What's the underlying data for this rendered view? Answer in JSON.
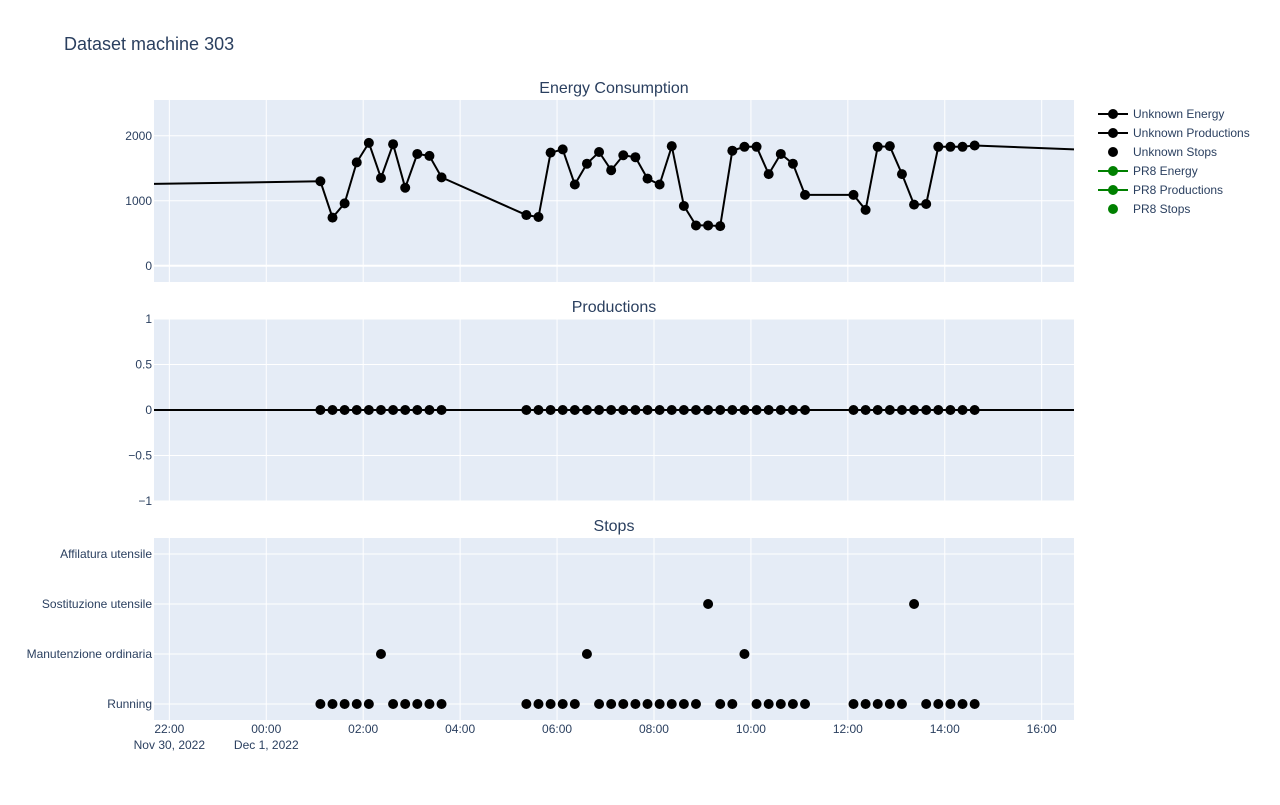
{
  "figure_title": "Dataset machine 303",
  "colors": {
    "plot_bg": "#e5ecf6",
    "grid": "#ffffff",
    "text": "#2a3f5f",
    "unknown": "#000000",
    "pr8": "#008000"
  },
  "legend": {
    "placement": "right",
    "items": [
      {
        "label": "Unknown Energy",
        "mode": "lines+markers",
        "color": "#000000"
      },
      {
        "label": "Unknown Productions",
        "mode": "lines+markers",
        "color": "#000000"
      },
      {
        "label": "Unknown Stops",
        "mode": "markers",
        "color": "#000000"
      },
      {
        "label": "PR8 Energy",
        "mode": "lines+markers",
        "color": "#008000"
      },
      {
        "label": "PR8 Productions",
        "mode": "lines+markers",
        "color": "#008000"
      },
      {
        "label": "PR8 Stops",
        "mode": "markers",
        "color": "#008000"
      }
    ]
  },
  "x_axis": {
    "type": "date",
    "range": [
      "2022-11-30T21:41",
      "2022-12-01T16:40"
    ],
    "ticks": [
      {
        "t": "2022-11-30T22:00",
        "label": "22:00",
        "sub": "Nov 30, 2022"
      },
      {
        "t": "2022-12-01T00:00",
        "label": "00:00",
        "sub": "Dec 1, 2022"
      },
      {
        "t": "2022-12-01T02:00",
        "label": "02:00"
      },
      {
        "t": "2022-12-01T04:00",
        "label": "04:00"
      },
      {
        "t": "2022-12-01T06:00",
        "label": "06:00"
      },
      {
        "t": "2022-12-01T08:00",
        "label": "08:00"
      },
      {
        "t": "2022-12-01T10:00",
        "label": "10:00"
      },
      {
        "t": "2022-12-01T12:00",
        "label": "12:00"
      },
      {
        "t": "2022-12-01T14:00",
        "label": "14:00"
      },
      {
        "t": "2022-12-01T16:00",
        "label": "16:00"
      }
    ]
  },
  "chart_data": [
    {
      "type": "line",
      "title": "Energy Consumption",
      "ylim": [
        -250,
        2550
      ],
      "yticks": [
        0,
        1000,
        2000
      ],
      "grid": true,
      "series": [
        {
          "name": "Unknown Energy",
          "line_start": {
            "x": "2022-11-30T21:41",
            "y": 1260
          },
          "line_end": {
            "x": "2022-12-01T16:40",
            "y": 1790
          },
          "points": [
            {
              "x": "2022-12-01T01:07",
              "y": 1300
            },
            {
              "x": "2022-12-01T01:22",
              "y": 740
            },
            {
              "x": "2022-12-01T01:37",
              "y": 960
            },
            {
              "x": "2022-12-01T01:52",
              "y": 1590
            },
            {
              "x": "2022-12-01T02:07",
              "y": 1890
            },
            {
              "x": "2022-12-01T02:22",
              "y": 1350
            },
            {
              "x": "2022-12-01T02:37",
              "y": 1870
            },
            {
              "x": "2022-12-01T02:52",
              "y": 1200
            },
            {
              "x": "2022-12-01T03:07",
              "y": 1720
            },
            {
              "x": "2022-12-01T03:22",
              "y": 1690
            },
            {
              "x": "2022-12-01T03:37",
              "y": 1360
            },
            {
              "x": "2022-12-01T05:22",
              "y": 780
            },
            {
              "x": "2022-12-01T05:37",
              "y": 750
            },
            {
              "x": "2022-12-01T05:52",
              "y": 1740
            },
            {
              "x": "2022-12-01T06:07",
              "y": 1790
            },
            {
              "x": "2022-12-01T06:22",
              "y": 1250
            },
            {
              "x": "2022-12-01T06:37",
              "y": 1570
            },
            {
              "x": "2022-12-01T06:52",
              "y": 1750
            },
            {
              "x": "2022-12-01T07:07",
              "y": 1470
            },
            {
              "x": "2022-12-01T07:22",
              "y": 1700
            },
            {
              "x": "2022-12-01T07:37",
              "y": 1670
            },
            {
              "x": "2022-12-01T07:52",
              "y": 1340
            },
            {
              "x": "2022-12-01T08:07",
              "y": 1250
            },
            {
              "x": "2022-12-01T08:22",
              "y": 1840
            },
            {
              "x": "2022-12-01T08:37",
              "y": 920
            },
            {
              "x": "2022-12-01T08:52",
              "y": 620
            },
            {
              "x": "2022-12-01T09:07",
              "y": 620
            },
            {
              "x": "2022-12-01T09:22",
              "y": 610
            },
            {
              "x": "2022-12-01T09:37",
              "y": 1770
            },
            {
              "x": "2022-12-01T09:52",
              "y": 1830
            },
            {
              "x": "2022-12-01T10:07",
              "y": 1830
            },
            {
              "x": "2022-12-01T10:22",
              "y": 1410
            },
            {
              "x": "2022-12-01T10:37",
              "y": 1720
            },
            {
              "x": "2022-12-01T10:52",
              "y": 1570
            },
            {
              "x": "2022-12-01T11:07",
              "y": 1090
            },
            {
              "x": "2022-12-01T12:07",
              "y": 1090
            },
            {
              "x": "2022-12-01T12:22",
              "y": 860
            },
            {
              "x": "2022-12-01T12:37",
              "y": 1830
            },
            {
              "x": "2022-12-01T12:52",
              "y": 1840
            },
            {
              "x": "2022-12-01T13:07",
              "y": 1410
            },
            {
              "x": "2022-12-01T13:22",
              "y": 940
            },
            {
              "x": "2022-12-01T13:37",
              "y": 950
            },
            {
              "x": "2022-12-01T13:52",
              "y": 1830
            },
            {
              "x": "2022-12-01T14:07",
              "y": 1830
            },
            {
              "x": "2022-12-01T14:22",
              "y": 1830
            },
            {
              "x": "2022-12-01T14:37",
              "y": 1850
            }
          ]
        }
      ]
    },
    {
      "type": "line",
      "title": "Productions",
      "ylim": [
        -1,
        1
      ],
      "yticks": [
        1,
        0.5,
        0,
        -0.5,
        -1
      ],
      "ytick_labels": [
        "1",
        "0.5",
        "0",
        "−0.5",
        "−1"
      ],
      "grid": true,
      "series": [
        {
          "name": "Unknown Productions",
          "line_value": 0,
          "points": [
            {
              "x": "2022-12-01T01:07",
              "y": 0
            },
            {
              "x": "2022-12-01T01:22",
              "y": 0
            },
            {
              "x": "2022-12-01T01:37",
              "y": 0
            },
            {
              "x": "2022-12-01T01:52",
              "y": 0
            },
            {
              "x": "2022-12-01T02:07",
              "y": 0
            },
            {
              "x": "2022-12-01T02:22",
              "y": 0
            },
            {
              "x": "2022-12-01T02:37",
              "y": 0
            },
            {
              "x": "2022-12-01T02:52",
              "y": 0
            },
            {
              "x": "2022-12-01T03:07",
              "y": 0
            },
            {
              "x": "2022-12-01T03:22",
              "y": 0
            },
            {
              "x": "2022-12-01T03:37",
              "y": 0
            },
            {
              "x": "2022-12-01T05:22",
              "y": 0
            },
            {
              "x": "2022-12-01T05:37",
              "y": 0
            },
            {
              "x": "2022-12-01T05:52",
              "y": 0
            },
            {
              "x": "2022-12-01T06:07",
              "y": 0
            },
            {
              "x": "2022-12-01T06:22",
              "y": 0
            },
            {
              "x": "2022-12-01T06:37",
              "y": 0
            },
            {
              "x": "2022-12-01T06:52",
              "y": 0
            },
            {
              "x": "2022-12-01T07:07",
              "y": 0
            },
            {
              "x": "2022-12-01T07:22",
              "y": 0
            },
            {
              "x": "2022-12-01T07:37",
              "y": 0
            },
            {
              "x": "2022-12-01T07:52",
              "y": 0
            },
            {
              "x": "2022-12-01T08:07",
              "y": 0
            },
            {
              "x": "2022-12-01T08:22",
              "y": 0
            },
            {
              "x": "2022-12-01T08:37",
              "y": 0
            },
            {
              "x": "2022-12-01T08:52",
              "y": 0
            },
            {
              "x": "2022-12-01T09:07",
              "y": 0
            },
            {
              "x": "2022-12-01T09:22",
              "y": 0
            },
            {
              "x": "2022-12-01T09:37",
              "y": 0
            },
            {
              "x": "2022-12-01T09:52",
              "y": 0
            },
            {
              "x": "2022-12-01T10:07",
              "y": 0
            },
            {
              "x": "2022-12-01T10:22",
              "y": 0
            },
            {
              "x": "2022-12-01T10:37",
              "y": 0
            },
            {
              "x": "2022-12-01T10:52",
              "y": 0
            },
            {
              "x": "2022-12-01T11:07",
              "y": 0
            },
            {
              "x": "2022-12-01T12:07",
              "y": 0
            },
            {
              "x": "2022-12-01T12:22",
              "y": 0
            },
            {
              "x": "2022-12-01T12:37",
              "y": 0
            },
            {
              "x": "2022-12-01T12:52",
              "y": 0
            },
            {
              "x": "2022-12-01T13:07",
              "y": 0
            },
            {
              "x": "2022-12-01T13:22",
              "y": 0
            },
            {
              "x": "2022-12-01T13:37",
              "y": 0
            },
            {
              "x": "2022-12-01T13:52",
              "y": 0
            },
            {
              "x": "2022-12-01T14:07",
              "y": 0
            },
            {
              "x": "2022-12-01T14:22",
              "y": 0
            },
            {
              "x": "2022-12-01T14:37",
              "y": 0
            }
          ]
        }
      ]
    },
    {
      "type": "scatter",
      "title": "Stops",
      "categories": [
        "Running",
        "Manutenzione ordinaria",
        "Sostituzione utensile",
        "Affilatura utensile"
      ],
      "grid": true,
      "series": [
        {
          "name": "Unknown Stops",
          "points": [
            {
              "x": "2022-12-01T01:07",
              "y": "Running"
            },
            {
              "x": "2022-12-01T01:22",
              "y": "Running"
            },
            {
              "x": "2022-12-01T01:37",
              "y": "Running"
            },
            {
              "x": "2022-12-01T01:52",
              "y": "Running"
            },
            {
              "x": "2022-12-01T02:07",
              "y": "Running"
            },
            {
              "x": "2022-12-01T02:22",
              "y": "Manutenzione ordinaria"
            },
            {
              "x": "2022-12-01T02:37",
              "y": "Running"
            },
            {
              "x": "2022-12-01T02:52",
              "y": "Running"
            },
            {
              "x": "2022-12-01T03:07",
              "y": "Running"
            },
            {
              "x": "2022-12-01T03:22",
              "y": "Running"
            },
            {
              "x": "2022-12-01T03:37",
              "y": "Running"
            },
            {
              "x": "2022-12-01T05:22",
              "y": "Running"
            },
            {
              "x": "2022-12-01T05:37",
              "y": "Running"
            },
            {
              "x": "2022-12-01T05:52",
              "y": "Running"
            },
            {
              "x": "2022-12-01T06:07",
              "y": "Running"
            },
            {
              "x": "2022-12-01T06:22",
              "y": "Running"
            },
            {
              "x": "2022-12-01T06:37",
              "y": "Manutenzione ordinaria"
            },
            {
              "x": "2022-12-01T06:52",
              "y": "Running"
            },
            {
              "x": "2022-12-01T07:07",
              "y": "Running"
            },
            {
              "x": "2022-12-01T07:22",
              "y": "Running"
            },
            {
              "x": "2022-12-01T07:37",
              "y": "Running"
            },
            {
              "x": "2022-12-01T07:52",
              "y": "Running"
            },
            {
              "x": "2022-12-01T08:07",
              "y": "Running"
            },
            {
              "x": "2022-12-01T08:22",
              "y": "Running"
            },
            {
              "x": "2022-12-01T08:37",
              "y": "Running"
            },
            {
              "x": "2022-12-01T08:52",
              "y": "Running"
            },
            {
              "x": "2022-12-01T09:07",
              "y": "Sostituzione utensile"
            },
            {
              "x": "2022-12-01T09:22",
              "y": "Running"
            },
            {
              "x": "2022-12-01T09:37",
              "y": "Running"
            },
            {
              "x": "2022-12-01T09:52",
              "y": "Manutenzione ordinaria"
            },
            {
              "x": "2022-12-01T10:07",
              "y": "Running"
            },
            {
              "x": "2022-12-01T10:22",
              "y": "Running"
            },
            {
              "x": "2022-12-01T10:37",
              "y": "Running"
            },
            {
              "x": "2022-12-01T10:52",
              "y": "Running"
            },
            {
              "x": "2022-12-01T11:07",
              "y": "Running"
            },
            {
              "x": "2022-12-01T12:07",
              "y": "Running"
            },
            {
              "x": "2022-12-01T12:22",
              "y": "Running"
            },
            {
              "x": "2022-12-01T12:37",
              "y": "Running"
            },
            {
              "x": "2022-12-01T12:52",
              "y": "Running"
            },
            {
              "x": "2022-12-01T13:07",
              "y": "Running"
            },
            {
              "x": "2022-12-01T13:22",
              "y": "Sostituzione utensile"
            },
            {
              "x": "2022-12-01T13:37",
              "y": "Running"
            },
            {
              "x": "2022-12-01T13:52",
              "y": "Running"
            },
            {
              "x": "2022-12-01T14:07",
              "y": "Running"
            },
            {
              "x": "2022-12-01T14:22",
              "y": "Running"
            },
            {
              "x": "2022-12-01T14:37",
              "y": "Running"
            }
          ]
        }
      ]
    }
  ]
}
